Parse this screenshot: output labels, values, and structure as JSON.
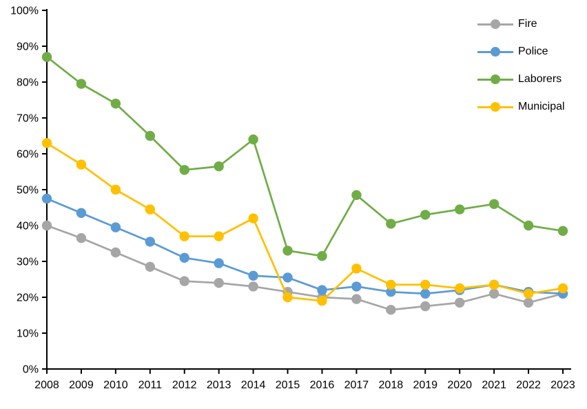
{
  "chart_data": {
    "type": "line",
    "title": "",
    "xlabel": "",
    "ylabel": "",
    "x": [
      "2008",
      "2009",
      "2010",
      "2011",
      "2012",
      "2013",
      "2014",
      "2015",
      "2016",
      "2017",
      "2018",
      "2019",
      "2020",
      "2021",
      "2022",
      "2023"
    ],
    "y_axis": {
      "min": 0,
      "max": 100,
      "step": 10,
      "format": "percent",
      "tick_labels": [
        "0%",
        "10%",
        "20%",
        "30%",
        "40%",
        "50%",
        "60%",
        "70%",
        "80%",
        "90%",
        "100%"
      ]
    },
    "grid": false,
    "legend_position": "top-right",
    "series": [
      {
        "name": "Fire",
        "color": "#A6A6A6",
        "values": [
          40,
          36.5,
          32.5,
          28.5,
          24.5,
          24,
          23,
          21.5,
          20,
          19.5,
          16.5,
          17.5,
          18.5,
          21,
          18.5,
          21
        ]
      },
      {
        "name": "Police",
        "color": "#5B9BD5",
        "values": [
          47.5,
          43.5,
          39.5,
          35.5,
          31,
          29.5,
          26,
          25.5,
          22,
          23,
          21.5,
          21,
          22,
          23.5,
          21.5,
          21
        ]
      },
      {
        "name": "Laborers",
        "color": "#70AD47",
        "values": [
          87,
          79.5,
          74,
          65,
          55.5,
          56.5,
          64,
          33,
          31.5,
          48.5,
          40.5,
          43,
          44.5,
          46,
          40,
          38.5
        ]
      },
      {
        "name": "Municipal",
        "color": "#FFC000",
        "values": [
          63,
          57,
          50,
          44.5,
          37,
          37,
          42,
          20,
          19,
          28,
          23.5,
          23.5,
          22.5,
          23.5,
          21,
          22.5
        ]
      }
    ],
    "axis_color": "#000000",
    "background_color": "#FFFFFF"
  }
}
